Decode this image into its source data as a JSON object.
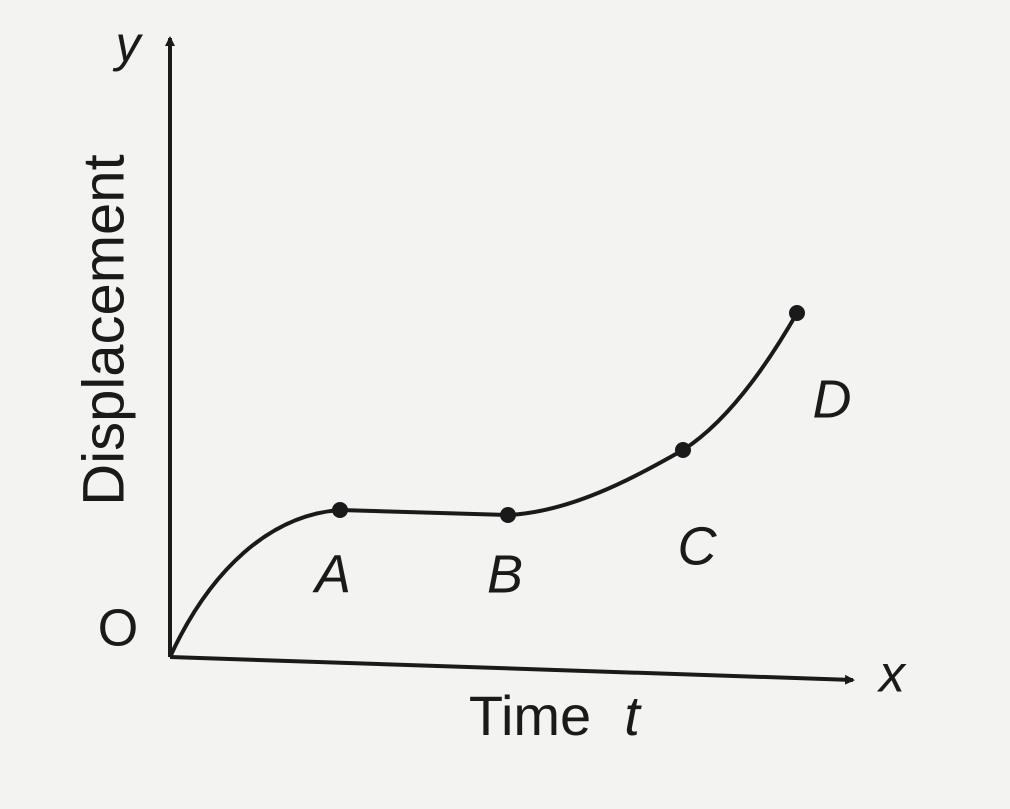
{
  "y_axis": {
    "symbol": "y",
    "label": "Displacement"
  },
  "x_axis": {
    "symbol": "x",
    "label": "Time",
    "variable": "t"
  },
  "origin": "O",
  "points": [
    {
      "label": "A"
    },
    {
      "label": "B"
    },
    {
      "label": "C"
    },
    {
      "label": "D"
    }
  ]
}
